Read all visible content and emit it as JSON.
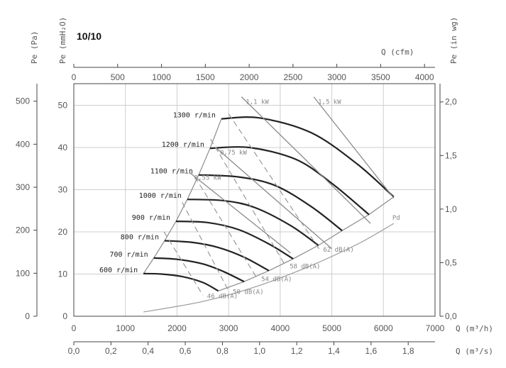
{
  "title": "10/10",
  "colors": {
    "curve": "#222222",
    "power": "#8a8a8a",
    "noise": "#999999",
    "pd": "#9a9a9a",
    "grid": "#cfcfcf"
  },
  "axes": {
    "left_pa": {
      "label": "Pe (Pa)",
      "ticks": [
        0,
        100,
        200,
        300,
        400,
        500
      ]
    },
    "left_mmh2o": {
      "label": "Pe (mmH₂O)",
      "ticks": [
        0,
        10,
        20,
        30,
        40,
        50
      ]
    },
    "right_inwg": {
      "label": "Pe (in wg)",
      "ticks": [
        "0,0",
        "0,5",
        "1,0",
        "1,5",
        "2,0"
      ]
    },
    "top_cfm": {
      "label": "Q (cfm)",
      "ticks": [
        0,
        500,
        1000,
        1500,
        2000,
        2500,
        3000,
        3500,
        4000
      ]
    },
    "bottom_m3h": {
      "label": "Q (m³/h)",
      "ticks": [
        0,
        1000,
        2000,
        3000,
        4000,
        5000,
        6000,
        7000
      ]
    },
    "bottom_m3s": {
      "label": "Q (m³/s)",
      "ticks": [
        "0,0",
        "0,2",
        "0,4",
        "0,6",
        "0,8",
        "1,0",
        "1,2",
        "1,4",
        "1,6",
        "1,8"
      ]
    }
  },
  "chart_data": {
    "type": "line",
    "title": "10/10",
    "xlabel": "Q (m³/h)",
    "ylabel": "Pe (mmH₂O)",
    "xlim": [
      0,
      7000
    ],
    "ylim": [
      0,
      55
    ],
    "grid": true,
    "series": [
      {
        "name": "600 r/min",
        "x": [
          1350,
          1700,
          2100,
          2500,
          2800
        ],
        "y": [
          10.1,
          10.0,
          9.4,
          8.0,
          6.0
        ]
      },
      {
        "name": "700 r/min",
        "x": [
          1550,
          2000,
          2500,
          2900,
          3300
        ],
        "y": [
          13.8,
          13.5,
          12.4,
          10.6,
          8.2
        ]
      },
      {
        "name": "800 r/min",
        "x": [
          1760,
          2300,
          2800,
          3300,
          3780
        ],
        "y": [
          17.9,
          17.5,
          16.3,
          14.0,
          10.8
        ]
      },
      {
        "name": "900 r/min",
        "x": [
          1980,
          2600,
          3200,
          3800,
          4250
        ],
        "y": [
          22.5,
          22.2,
          20.5,
          17.0,
          13.6
        ]
      },
      {
        "name": "1000 r/min",
        "x": [
          2200,
          2900,
          3500,
          4200,
          4740
        ],
        "y": [
          27.7,
          27.4,
          25.8,
          21.5,
          16.8
        ]
      },
      {
        "name": "1100 r/min",
        "x": [
          2420,
          3200,
          3900,
          4600,
          5200
        ],
        "y": [
          33.5,
          33.0,
          31.0,
          26.0,
          20.3
        ]
      },
      {
        "name": "1200 r/min",
        "x": [
          2640,
          3400,
          4300,
          5000,
          5720
        ],
        "y": [
          39.8,
          40.0,
          37.2,
          31.5,
          24.1
        ]
      },
      {
        "name": "1300 r/min",
        "x": [
          2860,
          3600,
          4600,
          5500,
          6200
        ],
        "y": [
          46.8,
          47.0,
          43.5,
          36.0,
          28.3
        ]
      },
      {
        "name": "0,55 kW",
        "x": [
          2250,
          4200
        ],
        "y": [
          34.0,
          15.0
        ]
      },
      {
        "name": "0,75 kW",
        "x": [
          2750,
          5000
        ],
        "y": [
          40.0,
          16.0
        ]
      },
      {
        "name": "1,1 kW",
        "x": [
          3250,
          5750
        ],
        "y": [
          52.0,
          22.0
        ]
      },
      {
        "name": "1,5 kW",
        "x": [
          4650,
          6200
        ],
        "y": [
          52.0,
          28.0
        ]
      },
      {
        "name": "46 dB(A)",
        "x": [
          1750,
          2500
        ],
        "y": [
          20.0,
          5.0
        ]
      },
      {
        "name": "50 dB(A)",
        "x": [
          2100,
          3000
        ],
        "y": [
          27.0,
          6.0
        ]
      },
      {
        "name": "54 dB(A)",
        "x": [
          2350,
          3550
        ],
        "y": [
          33.0,
          9.0
        ]
      },
      {
        "name": "58 dB(A)",
        "x": [
          2650,
          4100
        ],
        "y": [
          42.0,
          12.0
        ]
      },
      {
        "name": "62 dB(A)",
        "x": [
          3000,
          4750
        ],
        "y": [
          48.0,
          16.0
        ]
      },
      {
        "name": "Pd",
        "x": [
          1350,
          2500,
          3500,
          4500,
          5500,
          6200
        ],
        "y": [
          1.0,
          3.5,
          6.9,
          11.5,
          17.1,
          22.0
        ]
      }
    ],
    "annotations": [
      "600 r/min",
      "700 r/min",
      "800 r/min",
      "900 r/min",
      "1000 r/min",
      "1100 r/min",
      "1200 r/min",
      "1300 r/min",
      "0,55 kW",
      "0,75 kW",
      "1,1 kW",
      "1,5 kW",
      "46 dB(A)",
      "50 dB(A)",
      "54 dB(A)",
      "58 dB(A)",
      "62 dB(A)",
      "Pd"
    ]
  }
}
